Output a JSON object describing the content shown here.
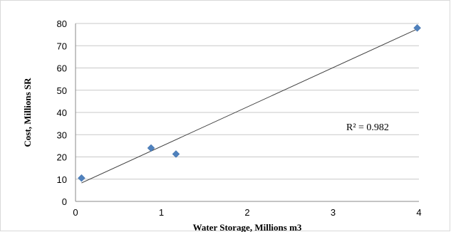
{
  "chart_data": {
    "type": "scatter",
    "title": "",
    "xlabel": "Water Storage, Millions m3",
    "ylabel": "Cost, Millions SR",
    "xlim": [
      0,
      4
    ],
    "ylim": [
      0,
      80
    ],
    "x_ticks": [
      0,
      1,
      2,
      3,
      4
    ],
    "y_ticks": [
      0,
      10,
      20,
      30,
      40,
      50,
      60,
      70,
      80
    ],
    "grid": "horizontal",
    "legend": "none",
    "points": [
      {
        "x": 0.07,
        "y": 10.5
      },
      {
        "x": 0.88,
        "y": 24
      },
      {
        "x": 1.17,
        "y": 21.3
      },
      {
        "x": 3.98,
        "y": 78
      }
    ],
    "trendline": {
      "type": "linear",
      "x_range": [
        0.07,
        3.98
      ],
      "y_range": [
        8.3,
        77.5
      ]
    },
    "annotation": "R² = 0.982",
    "colors": {
      "marker": "#4f81bd",
      "trendline": "#404040",
      "grid": "#c8c8c8"
    }
  }
}
